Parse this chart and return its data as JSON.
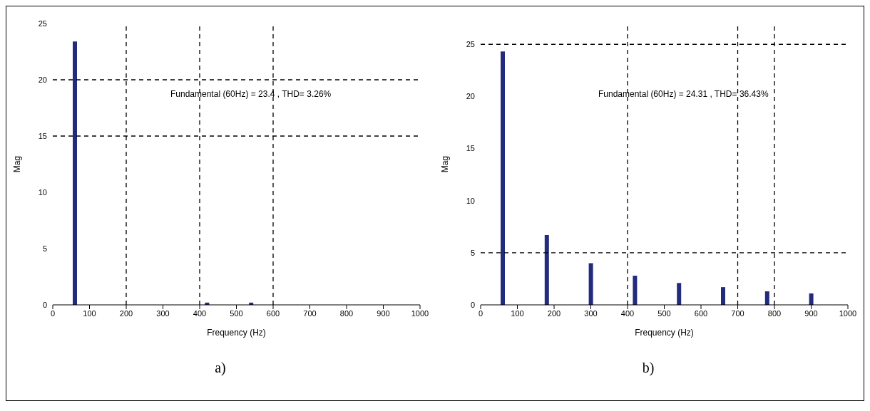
{
  "chart_data": [
    {
      "type": "bar",
      "x": [
        60,
        420,
        540
      ],
      "values": [
        23.4,
        0.2,
        0.2
      ],
      "color": "#232b7e",
      "xlabel": "Frequency (Hz)",
      "ylabel": "Mag",
      "xlim": [
        0,
        1000
      ],
      "xticks": [
        0,
        100,
        200,
        300,
        400,
        500,
        600,
        700,
        800,
        900,
        1000
      ],
      "ylim": [
        0,
        25
      ],
      "yticks": [
        0,
        5,
        10,
        15,
        20,
        25
      ],
      "grid": false,
      "annotations": [
        "Fundamental (60Hz) = 23.4 , THD= 3.26%",
        "a)"
      ],
      "ref_lines": [
        {
          "axis": "x",
          "value": 200,
          "line_style": "dashed"
        },
        {
          "axis": "x",
          "value": 400,
          "line_style": "dashed"
        },
        {
          "axis": "x",
          "value": 600,
          "line_style": "dashed"
        },
        {
          "axis": "y",
          "value": 15,
          "line_style": "dashed"
        },
        {
          "axis": "y",
          "value": 20,
          "line_style": "dashed"
        }
      ]
    },
    {
      "type": "bar",
      "x": [
        60,
        180,
        300,
        420,
        540,
        660,
        780,
        900
      ],
      "values": [
        24.31,
        6.7,
        4,
        2.8,
        2.1,
        1.7,
        1.3,
        1.1
      ],
      "color": "#232b7e",
      "xlabel": "Frequency (Hz)",
      "ylabel": "Mag",
      "xlim": [
        0,
        1000
      ],
      "xticks": [
        0,
        100,
        200,
        300,
        400,
        500,
        600,
        700,
        800,
        900,
        1000
      ],
      "ylim": [
        0,
        27
      ],
      "yticks": [
        0,
        5,
        10,
        15,
        20,
        25
      ],
      "grid": false,
      "annotations": [
        "Fundamental (60Hz) = 24.31 , THD= 36.43%",
        "b)"
      ],
      "ref_lines": [
        {
          "axis": "x",
          "value": 400,
          "line_style": "dashed"
        },
        {
          "axis": "x",
          "value": 700,
          "line_style": "dashed"
        },
        {
          "axis": "x",
          "value": 800,
          "line_style": "dashed"
        },
        {
          "axis": "y",
          "value": 5,
          "line_style": "dashed"
        },
        {
          "axis": "y",
          "value": 25,
          "line_style": "dashed"
        }
      ]
    }
  ]
}
